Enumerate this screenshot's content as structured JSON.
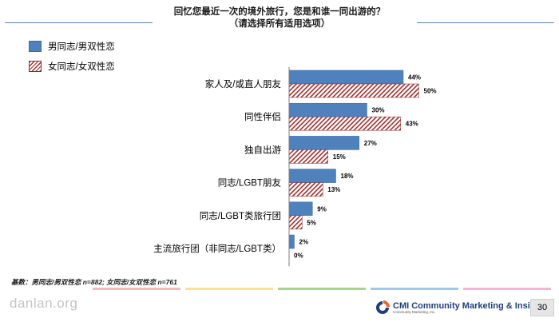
{
  "title": {
    "line1": "回忆您最近一次的境外旅行，您是和谁一同出游的？",
    "line2": "（请选择所有适用选项）"
  },
  "legend": {
    "gay_bi_men": "男同志/男双性恋",
    "lesbian_bi_women": "女同志/女双性恋"
  },
  "colors": {
    "series1": "#4f81bd",
    "series2_hatch": "#a03030",
    "title_rule": "#5b7fb0"
  },
  "chart_data": {
    "type": "bar",
    "orientation": "horizontal",
    "categories": [
      "家人及/或直人朋友",
      "同性伴侣",
      "独自出游",
      "同志/LGBT朋友",
      "同志/LGBT类旅行团",
      "主流旅行团（非同志/LGBT类）"
    ],
    "series": [
      {
        "name": "男同志/男双性恋",
        "values": [
          44,
          30,
          27,
          18,
          9,
          2
        ],
        "pattern": "solid"
      },
      {
        "name": "女同志/女双性恋",
        "values": [
          50,
          43,
          15,
          13,
          5,
          0
        ],
        "pattern": "hatch"
      }
    ],
    "value_suffix": "%",
    "xlim": [
      0,
      100
    ],
    "grid": false,
    "legend_position": "top-left"
  },
  "footnote": "基数：男同志/男双性恋 n=882; 女同志/女双性恋 n=761",
  "watermark": "danlan.org",
  "logo": {
    "name": "CMI",
    "full": "Community Marketing & Insights",
    "sub": "Community Marketing, Inc."
  },
  "page_number": "30"
}
